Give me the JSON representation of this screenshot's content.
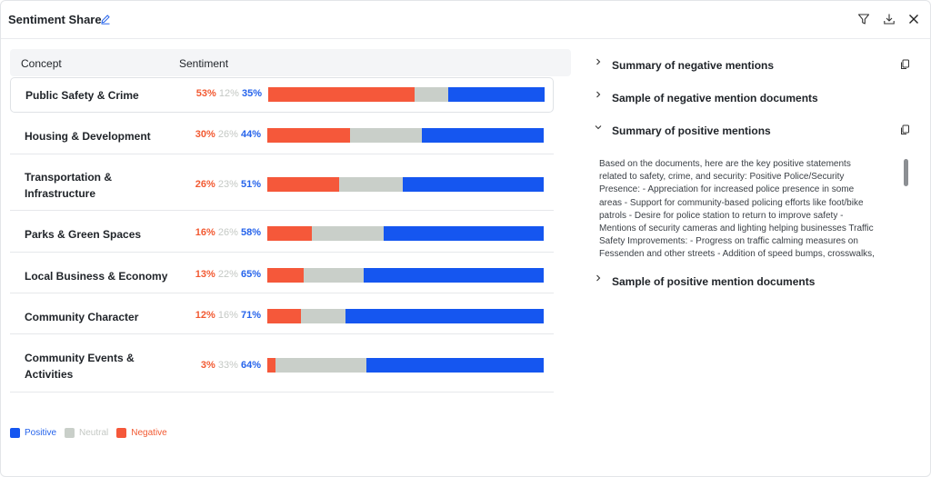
{
  "header": {
    "title": "Sentiment Share",
    "edit_icon": "pencil-icon",
    "actions": [
      "filter-icon",
      "download-icon",
      "close-icon"
    ]
  },
  "table": {
    "headers": {
      "concept": "Concept",
      "sentiment": "Sentiment"
    },
    "rows": [
      {
        "concept": "Public Safety & Crime",
        "negative": "53%",
        "neutral": "12%",
        "positive": "35%"
      },
      {
        "concept": "Housing & Development",
        "negative": "30%",
        "neutral": "26%",
        "positive": "44%"
      },
      {
        "concept": "Transportation & Infrastructure",
        "negative": "26%",
        "neutral": "23%",
        "positive": "51%"
      },
      {
        "concept": "Parks & Green Spaces",
        "negative": "16%",
        "neutral": "26%",
        "positive": "58%"
      },
      {
        "concept": "Local Business & Economy",
        "negative": "13%",
        "neutral": "22%",
        "positive": "65%"
      },
      {
        "concept": "Community Character",
        "negative": "12%",
        "neutral": "16%",
        "positive": "71%"
      },
      {
        "concept": "Community Events & Activities",
        "negative": "3%",
        "neutral": "33%",
        "positive": "64%"
      }
    ]
  },
  "legend": {
    "positive": "Positive",
    "neutral": "Neutral",
    "negative": "Negative"
  },
  "colors": {
    "negative": "#f5583a",
    "neutral": "#c9cfc9",
    "positive": "#1556f0"
  },
  "panel": {
    "sections": [
      {
        "label": "Summary of negative mentions",
        "expanded": false,
        "has_copy": true
      },
      {
        "label": "Sample of negative mention documents",
        "expanded": false,
        "has_copy": false
      },
      {
        "label": "Summary of positive mentions",
        "expanded": true,
        "has_copy": true
      },
      {
        "label": "Sample of positive mention documents",
        "expanded": false,
        "has_copy": false
      }
    ],
    "positive_summary_lines": [
      "Based on the documents, here are the key positive statements",
      "related to safety, crime, and security: Positive Police/Security",
      "Presence: - Appreciation for increased police presence in some",
      "areas - Support for community-based policing efforts like foot/bike",
      "patrols - Desire for police station to return to improve safety -",
      "Mentions of security cameras and lighting helping businesses Traffic",
      "Safety Improvements: - Progress on traffic calming measures on",
      "Fessenden and other streets - Addition of speed bumps, crosswalks,"
    ]
  }
}
